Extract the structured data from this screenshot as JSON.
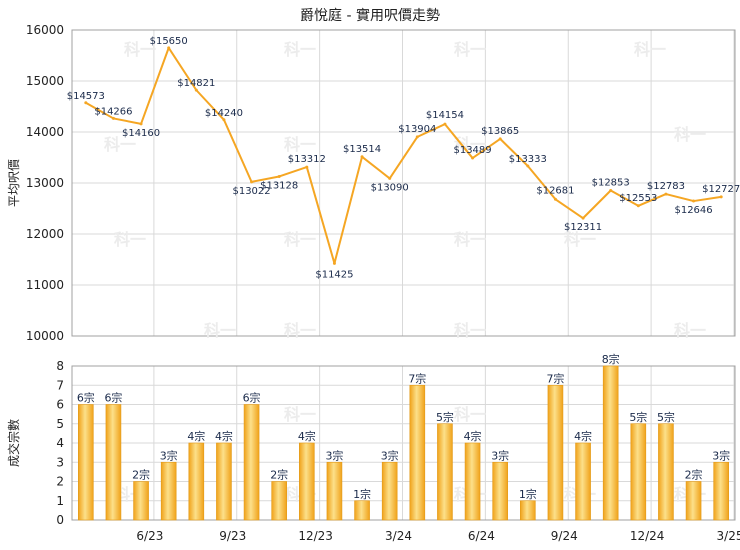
{
  "title": "爵悅庭 - 實用呎價走勢",
  "watermark": "科一",
  "colors": {
    "line": "#f5a623",
    "bar_light": "#fce08a",
    "bar_dark": "#f0a21a",
    "bar_edge": "#e39a18"
  },
  "chart_data": [
    {
      "type": "line",
      "ylabel": "平均呎價",
      "ylim": [
        10000,
        16000
      ],
      "yticks": [
        10000,
        11000,
        12000,
        13000,
        14000,
        15000,
        16000
      ],
      "grid": true,
      "x": [
        "4/23",
        "5/23",
        "6/23",
        "7/23",
        "8/23",
        "9/23",
        "10/23",
        "11/23",
        "12/23",
        "1/24",
        "2/24",
        "3/24",
        "4/24",
        "5/24",
        "6/24",
        "7/24",
        "8/24",
        "9/24",
        "10/24",
        "11/24",
        "12/24",
        "1/25",
        "2/25",
        "3/25"
      ],
      "values": [
        14573,
        14266,
        14160,
        15650,
        14821,
        14240,
        13022,
        13128,
        13312,
        11425,
        13514,
        13090,
        13904,
        14154,
        13489,
        13865,
        13333,
        12681,
        12311,
        12853,
        12553,
        12783,
        12646,
        12727
      ],
      "labels": [
        "$14573",
        "$14266",
        "$14160",
        "$15650",
        "$14821",
        "$14240",
        "$13022",
        "$13128",
        "$13312",
        "$11425",
        "$13514",
        "$13090",
        "$13904",
        "$14154",
        "$13489",
        "$13865",
        "$13333",
        "$12681",
        "$12311",
        "$12853",
        "$12553",
        "$12783",
        "$12646",
        "$12727"
      ]
    },
    {
      "type": "bar",
      "ylabel": "成交宗數",
      "ylim": [
        0,
        8
      ],
      "yticks": [
        0,
        1,
        2,
        3,
        4,
        5,
        6,
        7,
        8
      ],
      "grid": true,
      "categories": [
        "4/23",
        "5/23",
        "6/23",
        "7/23",
        "8/23",
        "9/23",
        "10/23",
        "11/23",
        "12/23",
        "1/24",
        "2/24",
        "3/24",
        "4/24",
        "5/24",
        "6/24",
        "7/24",
        "8/24",
        "9/24",
        "10/24",
        "11/24",
        "12/24",
        "1/25",
        "2/25",
        "3/25"
      ],
      "values": [
        6,
        6,
        2,
        3,
        4,
        4,
        6,
        2,
        4,
        3,
        1,
        3,
        7,
        5,
        4,
        3,
        1,
        7,
        4,
        8,
        5,
        5,
        2,
        3
      ],
      "labels": [
        "6宗",
        "6宗",
        "2宗",
        "3宗",
        "4宗",
        "4宗",
        "6宗",
        "2宗",
        "4宗",
        "3宗",
        "1宗",
        "3宗",
        "7宗",
        "5宗",
        "4宗",
        "3宗",
        "1宗",
        "7宗",
        "4宗",
        "8宗",
        "5宗",
        "5宗",
        "2宗",
        "3宗"
      ],
      "xtick_labels": [
        "6/23",
        "9/23",
        "12/23",
        "3/24",
        "6/24",
        "9/24",
        "12/24",
        "3/25"
      ]
    }
  ]
}
